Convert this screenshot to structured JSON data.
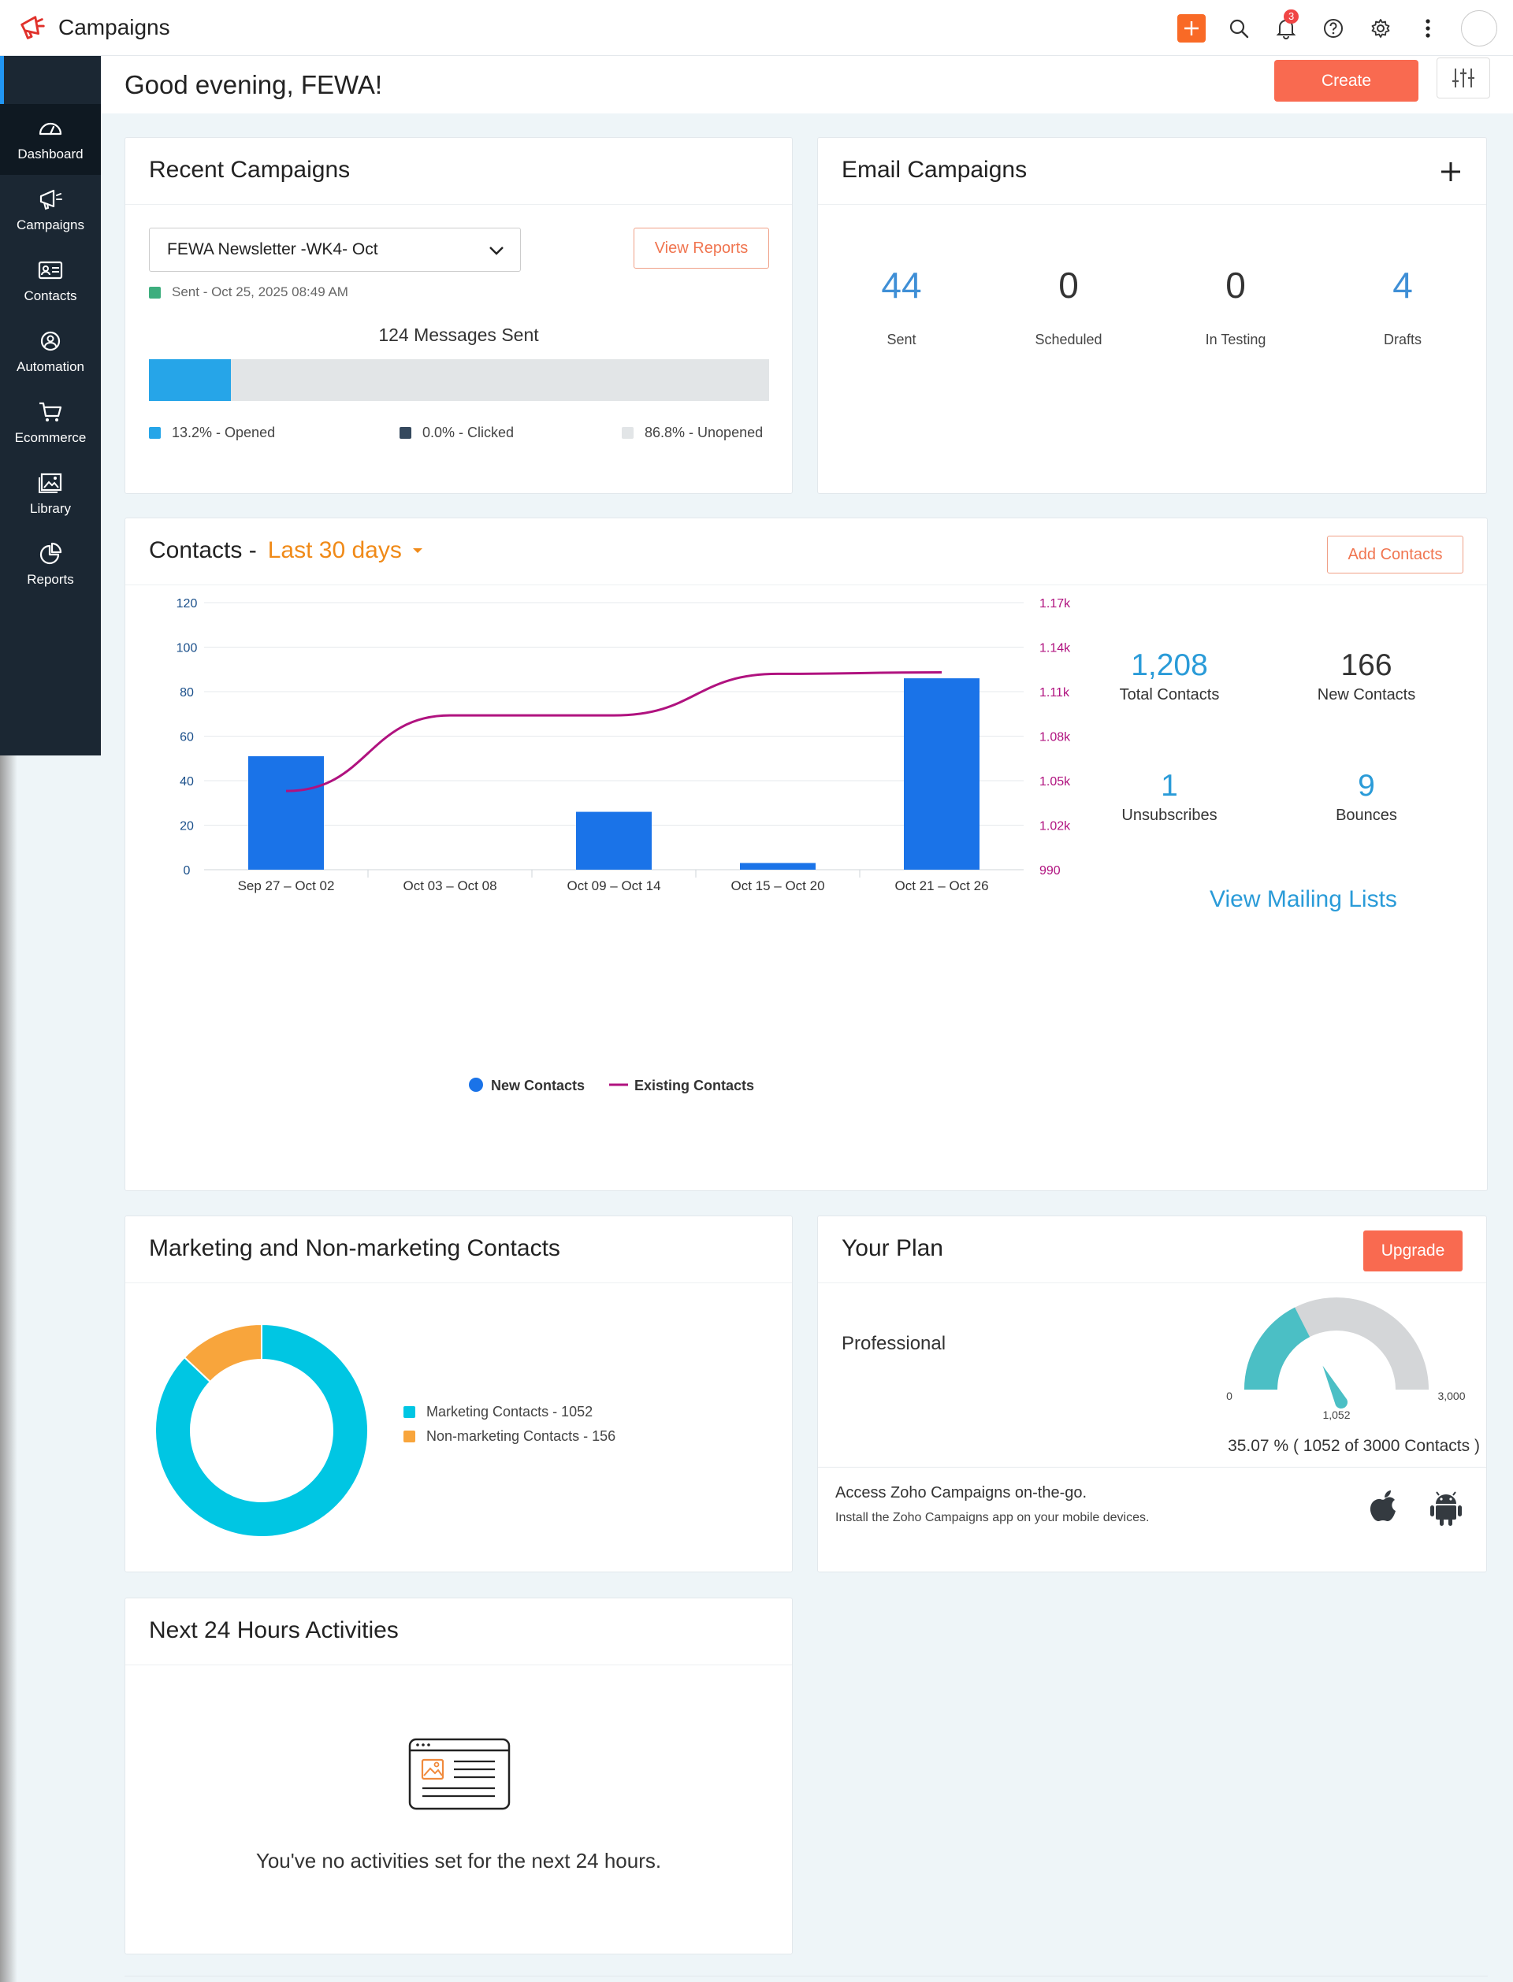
{
  "app": {
    "title": "Campaigns",
    "notification_count": "3"
  },
  "greeting": {
    "text": "Good evening, FEWA!",
    "create_label": "Create"
  },
  "sidebar": {
    "items": [
      {
        "label": "Dashboard",
        "icon": "dashboard-icon"
      },
      {
        "label": "Campaigns",
        "icon": "megaphone-icon"
      },
      {
        "label": "Contacts",
        "icon": "contacts-card-icon"
      },
      {
        "label": "Automation",
        "icon": "automation-icon"
      },
      {
        "label": "Ecommerce",
        "icon": "cart-icon"
      },
      {
        "label": "Library",
        "icon": "library-icon"
      },
      {
        "label": "Reports",
        "icon": "pie-chart-icon"
      }
    ]
  },
  "recent_campaigns": {
    "title": "Recent Campaigns",
    "selected_campaign": "FEWA Newsletter -WK4- Oct",
    "view_reports_label": "View Reports",
    "sent_status": "Sent - Oct 25, 2025 08:49 AM",
    "messages_sent": "124 Messages Sent",
    "opened_fraction": 0.132,
    "legend": [
      {
        "label": "13.2% - Opened",
        "color": "#26a5e8"
      },
      {
        "label": "0.0% - Clicked",
        "color": "#35495e"
      },
      {
        "label": "86.8% - Unopened",
        "color": "#e2e5e7"
      }
    ],
    "status_color": "#3dae7e"
  },
  "email_campaigns": {
    "title": "Email Campaigns",
    "stats": [
      {
        "value": "44",
        "label": "Sent"
      },
      {
        "value": "0",
        "label": "Scheduled"
      },
      {
        "value": "0",
        "label": "In Testing"
      },
      {
        "value": "4",
        "label": "Drafts"
      }
    ]
  },
  "contacts": {
    "title": "Contacts -",
    "range": "Last 30 days",
    "add_label": "Add Contacts",
    "stats": [
      {
        "value": "1,208",
        "label": "Total Contacts"
      },
      {
        "value": "166",
        "label": "New Contacts"
      },
      {
        "value": "1",
        "label": "Unsubscribes"
      },
      {
        "value": "9",
        "label": "Bounces"
      }
    ],
    "view_lists": "View Mailing Lists"
  },
  "chart_data": [
    {
      "type": "bar",
      "categories": [
        "Sep 27 – Oct 02",
        "Oct 03 – Oct 08",
        "Oct 09 – Oct 14",
        "Oct 15 – Oct 20",
        "Oct 21 – Oct 26"
      ],
      "series": [
        {
          "name": "New Contacts",
          "type": "bar",
          "axis": "left",
          "color": "#1a73e8",
          "values": [
            51,
            0,
            26,
            3,
            86
          ]
        },
        {
          "name": "Existing Contacts",
          "type": "line",
          "axis": "right",
          "color": "#b0127f",
          "values": [
            1043,
            1094,
            1094,
            1122,
            1123
          ]
        }
      ],
      "y_left": {
        "ticks": [
          "0",
          "20",
          "40",
          "60",
          "80",
          "100",
          "120"
        ],
        "range": [
          0,
          120
        ]
      },
      "y_right": {
        "ticks": [
          "990",
          "1.02k",
          "1.05k",
          "1.08k",
          "1.11k",
          "1.14k",
          "1.17k"
        ],
        "range": [
          990,
          1170
        ]
      },
      "legend_position": "bottom",
      "grid": true
    },
    {
      "type": "pie",
      "donut": true,
      "slices": [
        {
          "label": "Marketing Contacts - 1052",
          "value": 1052,
          "color": "#00c6e3"
        },
        {
          "label": "Non-marketing Contacts - 156",
          "value": 156,
          "color": "#f8a53c"
        }
      ]
    },
    {
      "type": "gauge",
      "min_label": "0",
      "max_label": "3,000",
      "value_label": "1,052",
      "min": 0,
      "max": 3000,
      "value": 1052,
      "fill_color": "#4bbfc5",
      "track_color": "#d4d6d8"
    }
  ],
  "marketing": {
    "title": "Marketing and Non-marketing Contacts"
  },
  "plan": {
    "title": "Your Plan",
    "upgrade_label": "Upgrade",
    "name": "Professional",
    "usage": "35.07 % ( 1052 of 3000 Contacts )",
    "mobile_title": "Access Zoho Campaigns on-the-go.",
    "mobile_subtitle": "Install the Zoho Campaigns app on your mobile devices."
  },
  "activities": {
    "title": "Next 24 Hours Activities",
    "empty_message": "You've no activities set for the next 24 hours."
  }
}
